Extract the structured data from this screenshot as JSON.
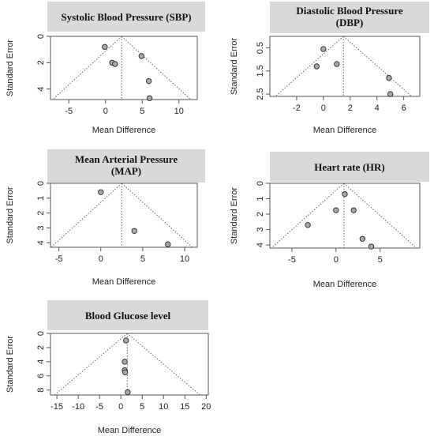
{
  "chart_data": [
    {
      "type": "scatter",
      "title": "Systolic Blood Pressure (SBP)",
      "xlabel": "Mean Difference",
      "ylabel": "Standard Error",
      "xlim": [
        -7.5,
        12.5
      ],
      "ylim": [
        0,
        4.8
      ],
      "y_reversed": true,
      "xticks": [
        -5,
        0,
        5,
        10
      ],
      "yticks": [
        0,
        2,
        4
      ],
      "pooled_estimate": 2.2,
      "x": [
        -0.1,
        0.9,
        1.3,
        4.9,
        5.9,
        6.0
      ],
      "y": [
        0.8,
        2.0,
        2.1,
        1.5,
        3.4,
        4.7
      ],
      "style": {
        "title_bg": "#d9d9d9",
        "point_fill": "#aaaaaa",
        "point_stroke": "#333333"
      }
    },
    {
      "type": "scatter",
      "title": "Diastolic Blood Pressure (DBP)",
      "xlabel": "Mean Difference",
      "ylabel": "Standard Error",
      "xlim": [
        -4.0,
        7.2
      ],
      "ylim": [
        0,
        2.6
      ],
      "y_reversed": true,
      "xticks": [
        -2,
        0,
        2,
        4,
        6
      ],
      "yticks": [
        0.5,
        1.5,
        2.5
      ],
      "pooled_estimate": 1.5,
      "x": [
        -0.5,
        0.0,
        1.0,
        4.9,
        5.0
      ],
      "y": [
        1.3,
        0.55,
        1.2,
        1.8,
        2.5
      ],
      "style": {
        "title_bg": "#d9d9d9",
        "point_fill": "#aaaaaa",
        "point_stroke": "#333333"
      }
    },
    {
      "type": "scatter",
      "title": "Mean Arterial Pressure (MAP)",
      "xlabel": "Mean Difference",
      "ylabel": "Standard Error",
      "xlim": [
        -6.0,
        11.5
      ],
      "ylim": [
        0,
        4.3
      ],
      "y_reversed": true,
      "xticks": [
        -5,
        0,
        5,
        10
      ],
      "yticks": [
        0,
        1,
        2,
        3,
        4
      ],
      "pooled_estimate": 2.5,
      "x": [
        0.0,
        4.0,
        8.0
      ],
      "y": [
        0.6,
        3.2,
        4.1
      ],
      "style": {
        "title_bg": "#d9d9d9",
        "point_fill": "#aaaaaa",
        "point_stroke": "#333333"
      }
    },
    {
      "type": "scatter",
      "title": "Heart rate (HR)",
      "xlabel": "Mean Difference",
      "ylabel": "Standard Error",
      "xlim": [
        -7.5,
        9.5
      ],
      "ylim": [
        0,
        4.2
      ],
      "y_reversed": true,
      "xticks": [
        -5,
        0,
        5
      ],
      "yticks": [
        0,
        1,
        2,
        3,
        4
      ],
      "pooled_estimate": 0.9,
      "x": [
        1.0,
        0.0,
        2.0,
        -3.2,
        3.0,
        4.0
      ],
      "y": [
        0.7,
        1.75,
        1.75,
        2.7,
        3.6,
        4.1
      ],
      "style": {
        "title_bg": "#d9d9d9",
        "point_fill": "#aaaaaa",
        "point_stroke": "#333333"
      }
    },
    {
      "type": "scatter",
      "title": "Blood Glucose level",
      "xlabel": "Mean Difference",
      "ylabel": "Standard Error",
      "xlim": [
        -16.5,
        20.5
      ],
      "ylim": [
        0,
        8.7
      ],
      "y_reversed": true,
      "xticks": [
        -15,
        -10,
        -5,
        0,
        5,
        10,
        15,
        20
      ],
      "yticks": [
        0,
        2,
        4,
        6,
        8
      ],
      "pooled_estimate": 1.5,
      "x": [
        1.2,
        0.9,
        0.9,
        1.0,
        1.6
      ],
      "y": [
        1.0,
        4.0,
        5.2,
        5.5,
        8.3
      ],
      "style": {
        "title_bg": "#d9d9d9",
        "point_fill": "#aaaaaa",
        "point_stroke": "#333333"
      }
    }
  ]
}
